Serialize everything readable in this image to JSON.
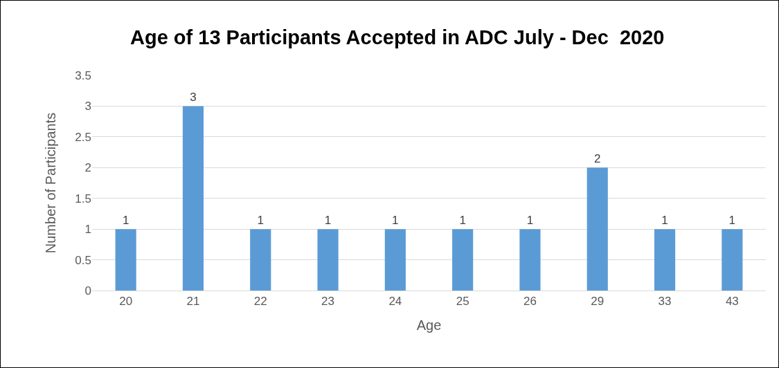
{
  "chart_data": {
    "type": "bar",
    "title": "Age of 13 Participants Accepted in ADC July - Dec  2020",
    "xlabel": "Age",
    "ylabel": "Number of Participants",
    "categories": [
      "20",
      "21",
      "22",
      "23",
      "24",
      "25",
      "26",
      "29",
      "33",
      "43"
    ],
    "values": [
      1,
      3,
      1,
      1,
      1,
      1,
      1,
      2,
      1,
      1
    ],
    "color": "#5b9bd5",
    "ylim": [
      0,
      3.5
    ],
    "yticks": [
      0,
      0.5,
      1,
      1.5,
      2,
      2.5,
      3,
      3.5
    ],
    "grid": "y",
    "data_labels": true,
    "legend": false
  }
}
